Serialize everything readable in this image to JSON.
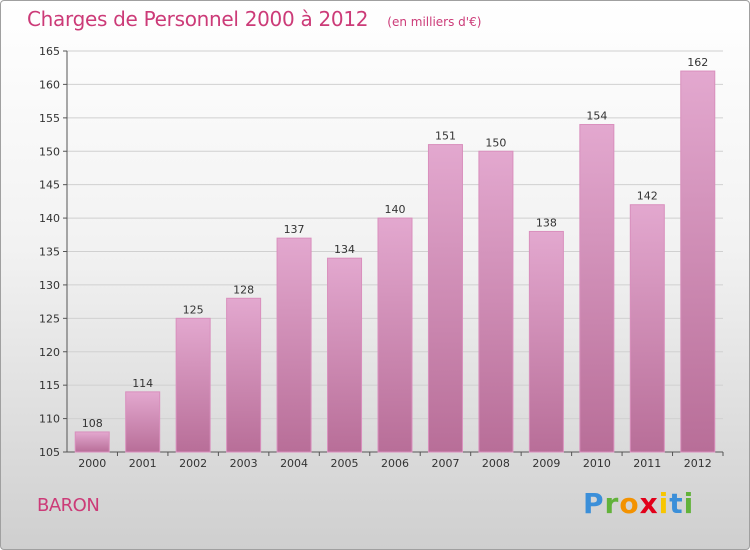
{
  "title": "Charges de Personnel 2000 à 2012",
  "subtitle": "(en milliers d'€)",
  "place": "BARON",
  "logo": "Proxiti",
  "colors": {
    "accent": "#cc3b78",
    "bar_top": "#e3a8cf",
    "bar_bottom": "#b86e98",
    "grid": "#d0d0d0"
  },
  "chart_data": {
    "type": "bar",
    "categories": [
      "2000",
      "2001",
      "2002",
      "2003",
      "2004",
      "2005",
      "2006",
      "2007",
      "2008",
      "2009",
      "2010",
      "2011",
      "2012"
    ],
    "values": [
      108,
      114,
      125,
      128,
      137,
      134,
      140,
      151,
      150,
      138,
      154,
      142,
      162
    ],
    "ylim": [
      105,
      165
    ],
    "yticks": [
      105,
      110,
      115,
      120,
      125,
      130,
      135,
      140,
      145,
      150,
      155,
      160,
      165
    ],
    "grid": true,
    "xlabel": "",
    "ylabel": ""
  }
}
